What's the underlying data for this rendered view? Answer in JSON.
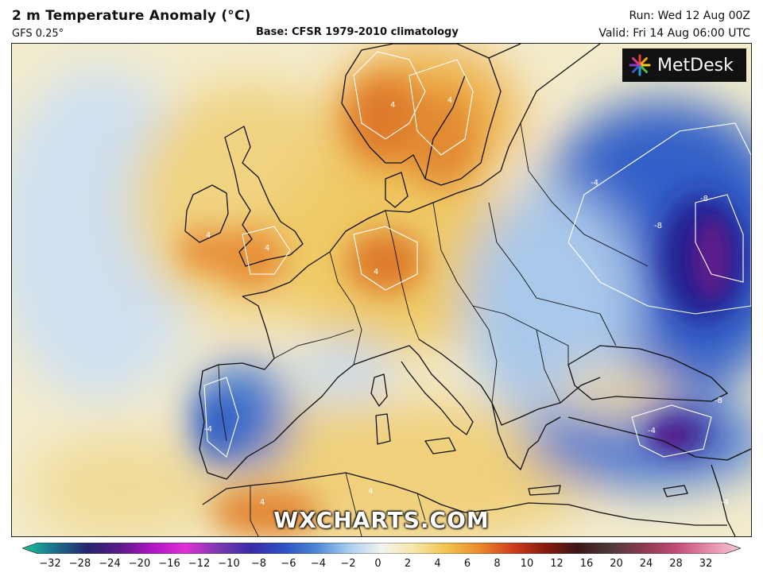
{
  "header": {
    "title": "2 m Temperature Anomaly (°C)",
    "model": "GFS 0.25°",
    "base": "Base: CFSR 1979-2010 climatology",
    "run": "Run: Wed 12 Aug 00Z",
    "valid": "Valid: Fri 14 Aug 06:00 UTC"
  },
  "logo": {
    "text": "MetDesk"
  },
  "watermark": "WXCHARTS.COM",
  "colors": {
    "land_outline": "#111111",
    "contour": "#ffffff",
    "cold_strong": "#2a1a8a",
    "cold": "#3b6fd0",
    "cool": "#b8d4ef",
    "neutral": "#f5f2dc",
    "warm": "#f2cf6a",
    "hot": "#ee9a35",
    "very_hot": "#d9602a"
  },
  "colorbar": {
    "ticks": [
      "−32",
      "−28",
      "−24",
      "−20",
      "−16",
      "−12",
      "−10",
      "−8",
      "−6",
      "−4",
      "−2",
      "0",
      "2",
      "4",
      "6",
      "8",
      "10",
      "12",
      "16",
      "20",
      "24",
      "28",
      "32"
    ],
    "stops": [
      "#18c79a",
      "#1b6f8c",
      "#26256e",
      "#5a1a8a",
      "#b116c4",
      "#e02fd6",
      "#7a3ab0",
      "#3c2aa8",
      "#2d51c4",
      "#4b86d6",
      "#a9cdef",
      "#f4f3ef",
      "#f7e7a8",
      "#f2c24e",
      "#ec8a2b",
      "#cf3e1d",
      "#8a1a10",
      "#3c1616",
      "#4d3a3a",
      "#8a3a4e",
      "#c04a76",
      "#e58aa8",
      "#f7c9dc"
    ]
  },
  "contour_labels": [
    {
      "text": "-4",
      "region": "ukraine"
    },
    {
      "text": "-8",
      "region": "russia"
    },
    {
      "text": "-8",
      "region": "russia-south"
    },
    {
      "text": "-8",
      "region": "turkey"
    },
    {
      "text": "-4",
      "region": "turkey-west"
    },
    {
      "text": "4",
      "region": "germany"
    },
    {
      "text": "4",
      "region": "uk"
    },
    {
      "text": "4",
      "region": "ireland"
    },
    {
      "text": "4",
      "region": "norway"
    },
    {
      "text": "4",
      "region": "sweden"
    },
    {
      "text": "-4",
      "region": "iberia"
    },
    {
      "text": "4",
      "region": "morocco"
    },
    {
      "text": "4",
      "region": "algeria"
    },
    {
      "text": "-4",
      "region": "levant"
    }
  ]
}
